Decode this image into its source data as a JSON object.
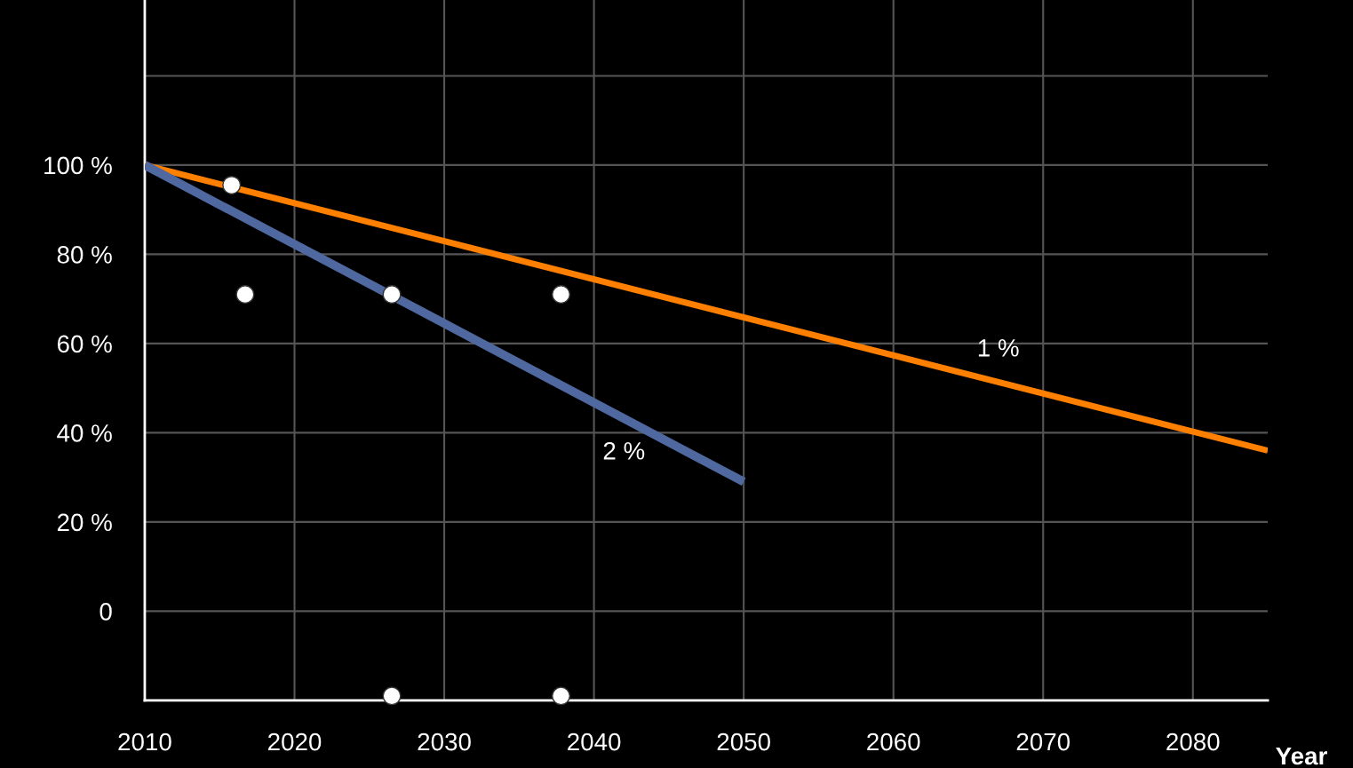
{
  "chart_data": {
    "type": "line",
    "xlabel": "Year",
    "xlim": [
      2010,
      2085
    ],
    "ylim": [
      -20,
      137
    ],
    "xticks": [
      2010,
      2020,
      2030,
      2040,
      2050,
      2060,
      2070,
      2080
    ],
    "yticks": [
      {
        "value": -20,
        "label": null
      },
      0,
      {
        "value": 20,
        "label": "20 %"
      },
      {
        "value": 40,
        "label": "40 %"
      },
      {
        "value": 60,
        "label": "60 %"
      },
      {
        "value": 80,
        "label": "80 %"
      },
      {
        "value": 100,
        "label": "100 %"
      },
      {
        "value": 120,
        "label": null
      }
    ],
    "grid": true,
    "legend": false,
    "series": [
      {
        "name": "1 %",
        "color": "#ff7f00",
        "x": [
          2010,
          2085
        ],
        "values": [
          100,
          36
        ]
      },
      {
        "name": "2 %",
        "color": "#5068a0",
        "x": [
          2010,
          2050
        ],
        "values": [
          100,
          29
        ]
      },
      {
        "type": "scatter",
        "color": "#ffffff",
        "x": [
          2015.8,
          2016.7,
          2026.5,
          2037.8,
          2026.5,
          2037.8
        ],
        "values": [
          95.5,
          71,
          71,
          71,
          -19,
          -19
        ]
      }
    ]
  }
}
